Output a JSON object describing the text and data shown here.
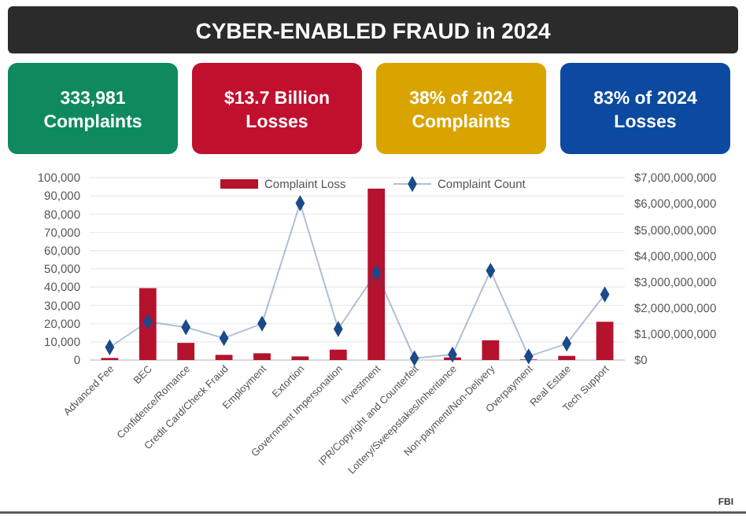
{
  "chart_data": {
    "type": "bar",
    "title": "CYBER-ENABLED FRAUD in 2024",
    "annotations": [
      "333,981 Complaints",
      "$13.7 Billion Losses",
      "38% of  2024 Complaints",
      "83% of 2024 Losses",
      "FBI"
    ],
    "categories": [
      "Advanced Fee",
      "BEC",
      "Confidence/Romance",
      "Credit Card/Check Fraud",
      "Employment",
      "Extortion",
      "Government Impersonation",
      "Investment",
      "IPR/Copyright and Counterfeit",
      "Lottery/Sweepstakes/Inheritance",
      "Non-payment/Non-Delivery",
      "Overpayment",
      "Real Estate",
      "Tech Support"
    ],
    "series": [
      {
        "name": "Complaint Loss",
        "axis": "y2",
        "color": "#b5122e",
        "values": [
          80000000,
          2760000000,
          660000000,
          200000000,
          260000000,
          140000000,
          400000000,
          6580000000,
          null,
          100000000,
          760000000,
          20000000,
          160000000,
          1470000000
        ]
      },
      {
        "name": "Complaint Count",
        "type": "line",
        "color": "#1a4a8a",
        "marker": "diamond",
        "values": [
          7000,
          21000,
          18000,
          12000,
          20000,
          86000,
          17000,
          48000,
          1000,
          3000,
          49000,
          2000,
          9000,
          36000
        ]
      }
    ],
    "ylim": [
      0,
      100000
    ],
    "yticks": [
      0,
      {
        "value": 10000,
        "label": "10,000"
      },
      {
        "value": 20000,
        "label": "20,000"
      },
      {
        "value": 30000,
        "label": "30,000"
      },
      {
        "value": 40000,
        "label": "40,000"
      },
      {
        "value": 50000,
        "label": "50,000"
      },
      {
        "value": 60000,
        "label": "60,000"
      },
      {
        "value": 70000,
        "label": "70,000"
      },
      {
        "value": 80000,
        "label": "80,000"
      },
      {
        "value": 90000,
        "label": "90,000"
      },
      {
        "value": 100000,
        "label": "100,000"
      }
    ],
    "y2lim": [
      0,
      7000000000
    ],
    "y2ticks": [
      {
        "value": 0,
        "label": "$0"
      },
      {
        "value": 1000000000,
        "label": "$1,000,000,000"
      },
      {
        "value": 2000000000,
        "label": "$2,000,000,000"
      },
      {
        "value": 3000000000,
        "label": "$3,000,000,000"
      },
      {
        "value": 4000000000,
        "label": "$4,000,000,000"
      },
      {
        "value": 5000000000,
        "label": "$5,000,000,000"
      },
      {
        "value": 6000000000,
        "label": "$6,000,000,000"
      },
      {
        "value": 7000000000,
        "label": "$7,000,000,000"
      }
    ],
    "grid": "y",
    "legend": "top"
  }
}
